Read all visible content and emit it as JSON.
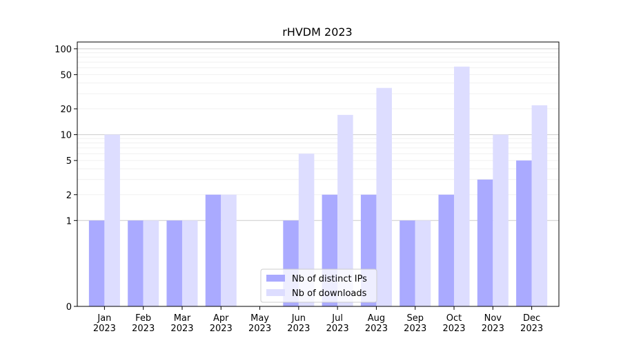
{
  "chart_data": {
    "type": "bar",
    "title": "rHVDM 2023",
    "xlabel": "",
    "ylabel": "",
    "yscale": "symlog",
    "ylim": [
      0,
      120
    ],
    "yticks": [
      0,
      1,
      2,
      5,
      10,
      20,
      50,
      100
    ],
    "grid": "y-major-and-minor",
    "legend_position": "lower-center",
    "categories": [
      "Jan\n2023",
      "Feb\n2023",
      "Mar\n2023",
      "Apr\n2023",
      "May\n2023",
      "Jun\n2023",
      "Jul\n2023",
      "Aug\n2023",
      "Sep\n2023",
      "Oct\n2023",
      "Nov\n2023",
      "Dec\n2023"
    ],
    "series": [
      {
        "name": "Nb of distinct IPs",
        "color": "#aaaaff",
        "values": [
          1,
          1,
          1,
          2,
          0,
          1,
          2,
          2,
          1,
          2,
          3,
          5
        ]
      },
      {
        "name": "Nb of downloads",
        "color": "#ddddff",
        "values": [
          10,
          1,
          1,
          2,
          0,
          6,
          17,
          35,
          1,
          62,
          10,
          22
        ]
      }
    ]
  }
}
